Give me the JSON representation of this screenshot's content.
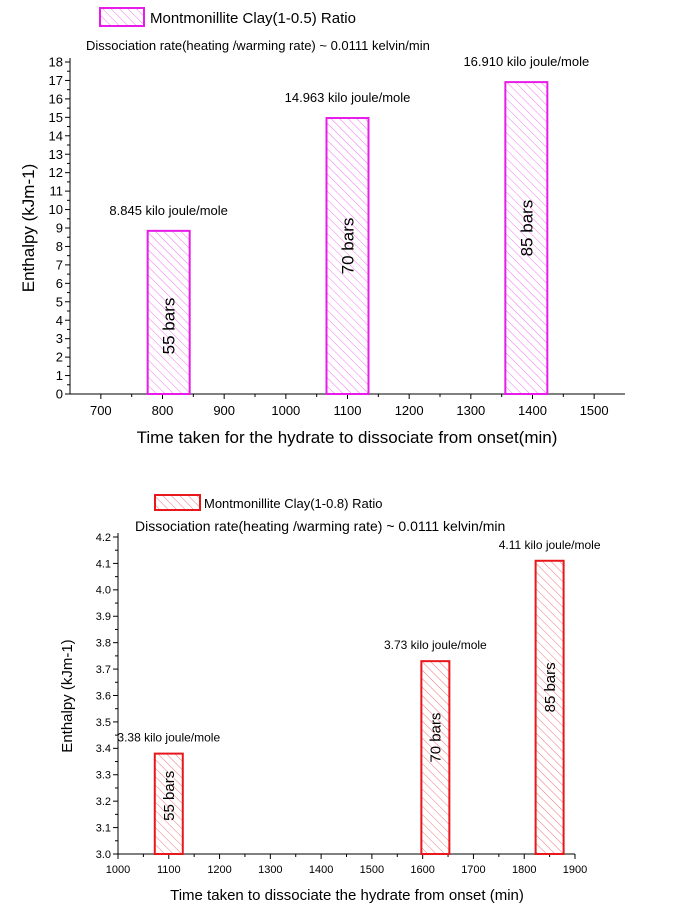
{
  "chart_data": [
    {
      "type": "bar",
      "legend": "Montmonillite Clay(1-0.5) Ratio",
      "subtitle": "Dissociation rate(heating /warming rate) ~ 0.0111 kelvin/min",
      "xlabel": "Time taken for the hydrate to dissociate from onset(min)",
      "ylabel": "Enthalpy (kJm-1)",
      "xlim": [
        650,
        1550
      ],
      "ylim": [
        0,
        18
      ],
      "xticks": [
        700,
        800,
        900,
        1000,
        1100,
        1200,
        1300,
        1400,
        1500
      ],
      "yticks": [
        0,
        1,
        2,
        3,
        4,
        5,
        6,
        7,
        8,
        9,
        10,
        11,
        12,
        13,
        14,
        15,
        16,
        17,
        18
      ],
      "color": "#e81ce8",
      "legend_position": "top-left",
      "grid": false,
      "bars": [
        {
          "x": 810,
          "value": 8.845,
          "label": "8.845 kilo joule/mole",
          "inner_label": "55 bars"
        },
        {
          "x": 1100,
          "value": 14.963,
          "label": "14.963 kilo joule/mole",
          "inner_label": "70 bars"
        },
        {
          "x": 1390,
          "value": 16.91,
          "label": "16.910 kilo joule/mole",
          "inner_label": "85 bars"
        }
      ]
    },
    {
      "type": "bar",
      "legend": "Montmonillite Clay(1-0.8) Ratio",
      "subtitle": "Dissociation rate(heating /warming rate) ~ 0.0111 kelvin/min",
      "xlabel": "Time taken to dissociate the hydrate from onset (min)",
      "ylabel": "Enthalpy (kJm-1)",
      "xlim": [
        1000,
        1900
      ],
      "ylim": [
        3.0,
        4.2
      ],
      "xticks": [
        1000,
        1100,
        1200,
        1300,
        1400,
        1500,
        1600,
        1700,
        1800,
        1900
      ],
      "yticks": [
        "3.0",
        "3.1",
        "3.2",
        "3.3",
        "3.4",
        "3.5",
        "3.6",
        "3.7",
        "3.8",
        "3.9",
        "4.0",
        "4.1",
        "4.2"
      ],
      "color": "#e8171c",
      "legend_position": "top-left",
      "grid": false,
      "bars": [
        {
          "x": 1100,
          "value": 3.38,
          "label": "3.38 kilo joule/mole",
          "inner_label": "55 bars"
        },
        {
          "x": 1625,
          "value": 3.73,
          "label": "3.73 kilo joule/mole",
          "inner_label": "70 bars"
        },
        {
          "x": 1850,
          "value": 4.11,
          "label": "4.11 kilo joule/mole",
          "inner_label": "85 bars"
        }
      ]
    }
  ]
}
